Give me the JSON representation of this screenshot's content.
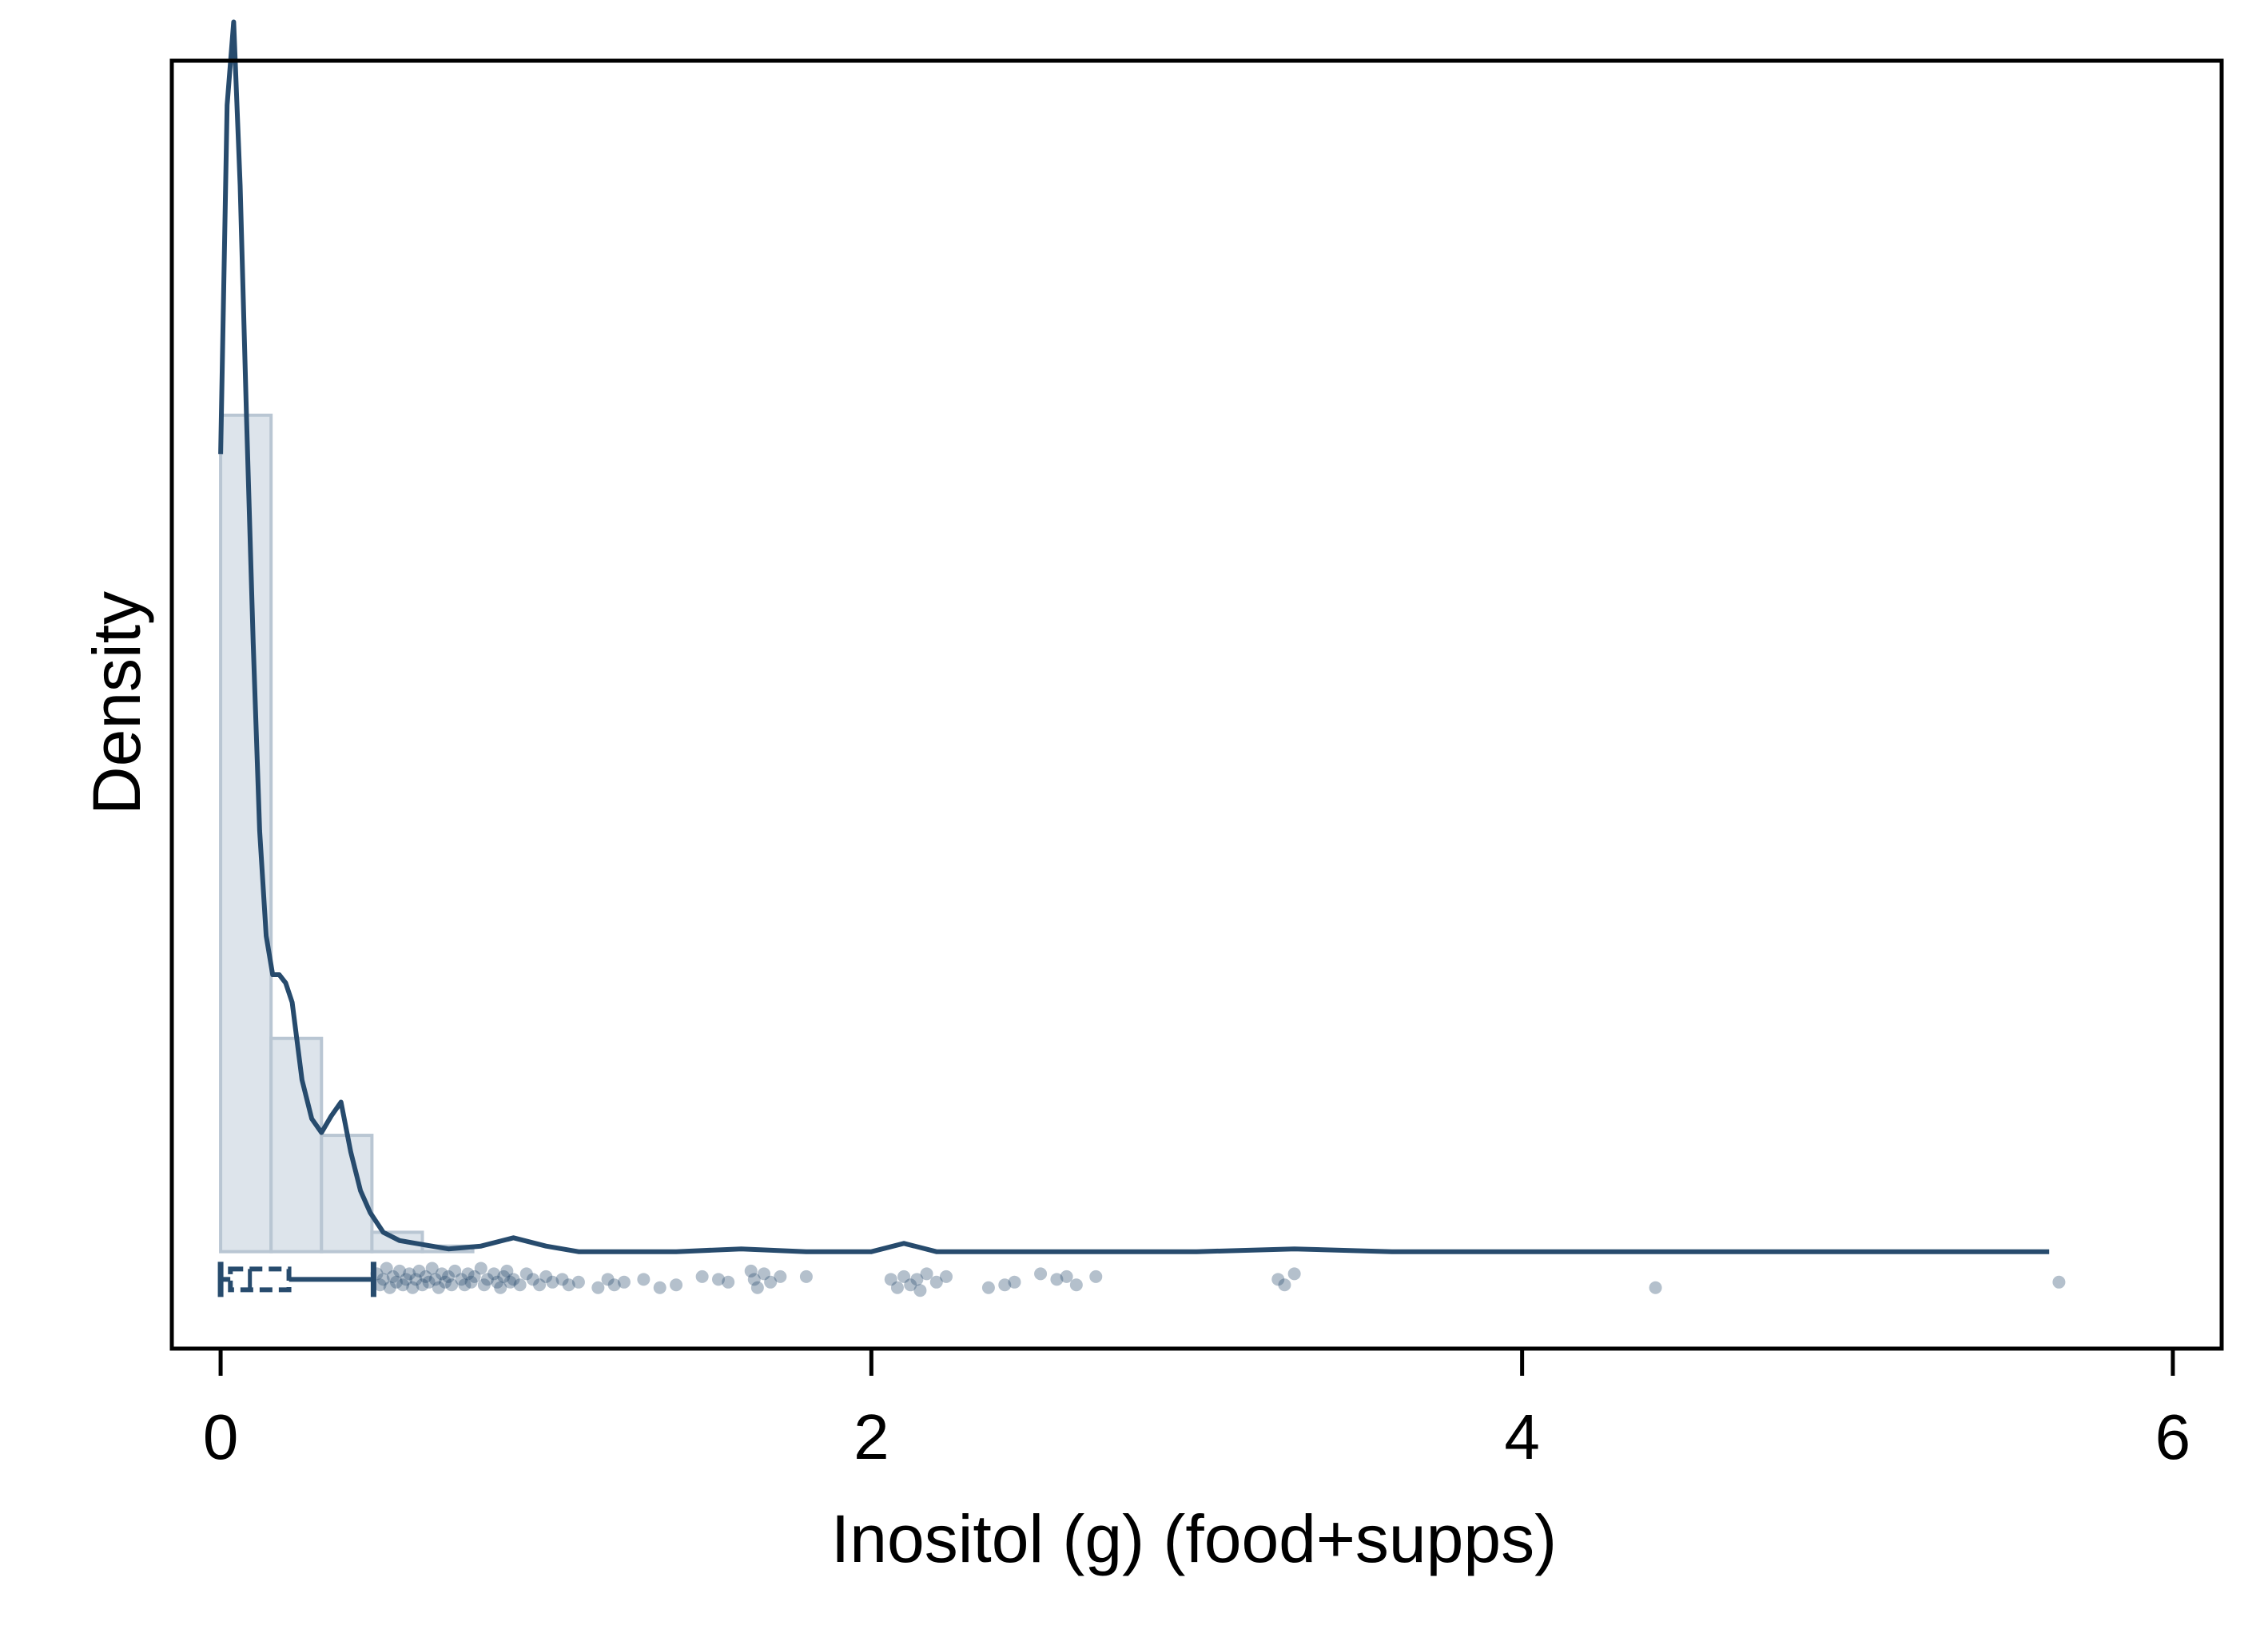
{
  "chart_data": {
    "type": "histogram-density-box",
    "xlabel": "Inositol (g) (food+supps)",
    "ylabel": "Density",
    "xlim": [
      -0.15,
      6.15
    ],
    "ylim": [
      -0.35,
      4.3
    ],
    "x_ticks": [
      0,
      2,
      4,
      6
    ],
    "x_tick_labels": [
      "0",
      "2",
      "4",
      "6"
    ],
    "y_tick_labels_shown": false,
    "colors": {
      "line": "#274b6d",
      "bar_fill": "#dde4eb",
      "bar_stroke": "#b9c6d3",
      "points": "#274b6d"
    },
    "histogram": {
      "bin_width": 0.155,
      "bins": [
        {
          "x0": 0.0,
          "x1": 0.155,
          "density": 3.02
        },
        {
          "x0": 0.155,
          "x1": 0.31,
          "density": 0.77
        },
        {
          "x0": 0.31,
          "x1": 0.465,
          "density": 0.42
        },
        {
          "x0": 0.465,
          "x1": 0.62,
          "density": 0.07
        },
        {
          "x0": 0.62,
          "x1": 0.775,
          "density": 0.02
        }
      ]
    },
    "density_curve": {
      "x": [
        0.0,
        0.02,
        0.04,
        0.06,
        0.08,
        0.1,
        0.12,
        0.14,
        0.16,
        0.18,
        0.2,
        0.22,
        0.25,
        0.28,
        0.31,
        0.34,
        0.37,
        0.4,
        0.43,
        0.46,
        0.5,
        0.55,
        0.6,
        0.7,
        0.8,
        0.9,
        1.0,
        1.1,
        1.2,
        1.4,
        1.6,
        1.8,
        2.0,
        2.1,
        2.2,
        2.4,
        2.7,
        3.0,
        3.3,
        3.6,
        4.0,
        4.4,
        4.8,
        5.2,
        5.62
      ],
      "y": [
        2.88,
        4.14,
        4.44,
        3.85,
        3.0,
        2.2,
        1.52,
        1.14,
        1.0,
        1.0,
        0.97,
        0.9,
        0.62,
        0.48,
        0.43,
        0.49,
        0.54,
        0.36,
        0.22,
        0.14,
        0.07,
        0.04,
        0.03,
        0.01,
        0.02,
        0.05,
        0.02,
        0.0,
        0.0,
        0.0,
        0.01,
        0.0,
        0.0,
        0.03,
        0.0,
        0.0,
        0.0,
        0.0,
        0.01,
        0.0,
        0.0,
        0.0,
        0.0,
        0.0,
        0.0
      ]
    },
    "boxplot": {
      "whisker_low": 0.0,
      "q1": 0.03,
      "median": 0.09,
      "q3": 0.21,
      "whisker_high": 0.47,
      "y": -0.1
    },
    "outliers": [
      {
        "x": 0.48,
        "y": -0.08
      },
      {
        "x": 0.49,
        "y": -0.12
      },
      {
        "x": 0.5,
        "y": -0.1
      },
      {
        "x": 0.51,
        "y": -0.06
      },
      {
        "x": 0.52,
        "y": -0.13
      },
      {
        "x": 0.53,
        "y": -0.09
      },
      {
        "x": 0.54,
        "y": -0.11
      },
      {
        "x": 0.55,
        "y": -0.07
      },
      {
        "x": 0.56,
        "y": -0.12
      },
      {
        "x": 0.57,
        "y": -0.1
      },
      {
        "x": 0.58,
        "y": -0.08
      },
      {
        "x": 0.59,
        "y": -0.13
      },
      {
        "x": 0.6,
        "y": -0.1
      },
      {
        "x": 0.61,
        "y": -0.07
      },
      {
        "x": 0.62,
        "y": -0.12
      },
      {
        "x": 0.63,
        "y": -0.09
      },
      {
        "x": 0.64,
        "y": -0.11
      },
      {
        "x": 0.65,
        "y": -0.06
      },
      {
        "x": 0.66,
        "y": -0.1
      },
      {
        "x": 0.67,
        "y": -0.13
      },
      {
        "x": 0.68,
        "y": -0.08
      },
      {
        "x": 0.69,
        "y": -0.11
      },
      {
        "x": 0.7,
        "y": -0.09
      },
      {
        "x": 0.71,
        "y": -0.12
      },
      {
        "x": 0.72,
        "y": -0.07
      },
      {
        "x": 0.74,
        "y": -0.1
      },
      {
        "x": 0.75,
        "y": -0.12
      },
      {
        "x": 0.76,
        "y": -0.08
      },
      {
        "x": 0.77,
        "y": -0.11
      },
      {
        "x": 0.78,
        "y": -0.09
      },
      {
        "x": 0.8,
        "y": -0.06
      },
      {
        "x": 0.81,
        "y": -0.12
      },
      {
        "x": 0.82,
        "y": -0.1
      },
      {
        "x": 0.84,
        "y": -0.08
      },
      {
        "x": 0.85,
        "y": -0.11
      },
      {
        "x": 0.86,
        "y": -0.13
      },
      {
        "x": 0.87,
        "y": -0.09
      },
      {
        "x": 0.88,
        "y": -0.07
      },
      {
        "x": 0.89,
        "y": -0.11
      },
      {
        "x": 0.9,
        "y": -0.1
      },
      {
        "x": 0.92,
        "y": -0.12
      },
      {
        "x": 0.94,
        "y": -0.08
      },
      {
        "x": 0.96,
        "y": -0.1
      },
      {
        "x": 0.98,
        "y": -0.12
      },
      {
        "x": 1.0,
        "y": -0.09
      },
      {
        "x": 1.02,
        "y": -0.11
      },
      {
        "x": 1.05,
        "y": -0.1
      },
      {
        "x": 1.07,
        "y": -0.12
      },
      {
        "x": 1.1,
        "y": -0.11
      },
      {
        "x": 1.16,
        "y": -0.13
      },
      {
        "x": 1.19,
        "y": -0.1
      },
      {
        "x": 1.21,
        "y": -0.12
      },
      {
        "x": 1.24,
        "y": -0.11
      },
      {
        "x": 1.3,
        "y": -0.1
      },
      {
        "x": 1.35,
        "y": -0.13
      },
      {
        "x": 1.4,
        "y": -0.12
      },
      {
        "x": 1.48,
        "y": -0.09
      },
      {
        "x": 1.53,
        "y": -0.1
      },
      {
        "x": 1.56,
        "y": -0.11
      },
      {
        "x": 1.63,
        "y": -0.07
      },
      {
        "x": 1.64,
        "y": -0.1
      },
      {
        "x": 1.65,
        "y": -0.13
      },
      {
        "x": 1.67,
        "y": -0.08
      },
      {
        "x": 1.69,
        "y": -0.11
      },
      {
        "x": 1.72,
        "y": -0.09
      },
      {
        "x": 1.8,
        "y": -0.09
      },
      {
        "x": 2.06,
        "y": -0.1
      },
      {
        "x": 2.08,
        "y": -0.13
      },
      {
        "x": 2.1,
        "y": -0.09
      },
      {
        "x": 2.12,
        "y": -0.12
      },
      {
        "x": 2.14,
        "y": -0.1
      },
      {
        "x": 2.15,
        "y": -0.14
      },
      {
        "x": 2.17,
        "y": -0.08
      },
      {
        "x": 2.2,
        "y": -0.11
      },
      {
        "x": 2.23,
        "y": -0.09
      },
      {
        "x": 2.36,
        "y": -0.13
      },
      {
        "x": 2.41,
        "y": -0.12
      },
      {
        "x": 2.44,
        "y": -0.11
      },
      {
        "x": 2.52,
        "y": -0.08
      },
      {
        "x": 2.57,
        "y": -0.1
      },
      {
        "x": 2.6,
        "y": -0.09
      },
      {
        "x": 2.63,
        "y": -0.12
      },
      {
        "x": 2.69,
        "y": -0.09
      },
      {
        "x": 3.25,
        "y": -0.1
      },
      {
        "x": 3.27,
        "y": -0.12
      },
      {
        "x": 3.3,
        "y": -0.08
      },
      {
        "x": 4.41,
        "y": -0.13
      },
      {
        "x": 5.65,
        "y": -0.11
      }
    ]
  }
}
